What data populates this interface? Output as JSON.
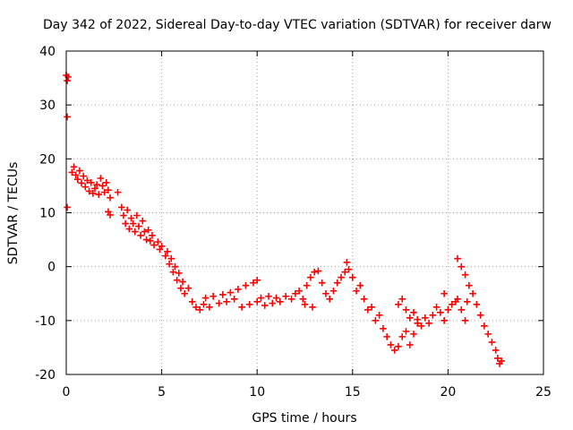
{
  "chart_data": {
    "type": "scatter",
    "title": "Day 342 of 2022, Sidereal Day-to-day VTEC variation (SDTVAR) for receiver darw",
    "xlabel": "GPS time / hours",
    "ylabel": "SDTVAR / TECUs",
    "xlim": [
      0,
      25
    ],
    "ylim": [
      -20,
      40
    ],
    "xticks": [
      0,
      5,
      10,
      15,
      20,
      25
    ],
    "yticks": [
      -20,
      -10,
      0,
      10,
      20,
      30,
      40
    ],
    "xtick_labels": [
      "0",
      "5",
      "10",
      "15",
      "20",
      "25"
    ],
    "ytick_labels": [
      "-20",
      "-10",
      "0",
      "10",
      "20",
      "30",
      "40"
    ],
    "grid": true,
    "marker": "plus",
    "color": "#ff0000",
    "series": [
      {
        "name": "SDTVAR",
        "points": [
          [
            0.0,
            35.5
          ],
          [
            0.05,
            34.5
          ],
          [
            0.1,
            35.2
          ],
          [
            0.05,
            27.8
          ],
          [
            0.05,
            11.0
          ],
          [
            0.3,
            17.5
          ],
          [
            0.4,
            18.5
          ],
          [
            0.5,
            17.0
          ],
          [
            0.6,
            16.2
          ],
          [
            0.7,
            17.8
          ],
          [
            0.8,
            15.5
          ],
          [
            0.9,
            16.8
          ],
          [
            1.0,
            14.8
          ],
          [
            1.1,
            16.0
          ],
          [
            1.2,
            14.0
          ],
          [
            1.3,
            15.6
          ],
          [
            1.4,
            13.6
          ],
          [
            1.5,
            14.5
          ],
          [
            1.6,
            15.2
          ],
          [
            1.7,
            13.4
          ],
          [
            1.8,
            16.4
          ],
          [
            1.9,
            15.0
          ],
          [
            2.0,
            13.8
          ],
          [
            2.1,
            15.6
          ],
          [
            2.2,
            14.2
          ],
          [
            2.3,
            12.8
          ],
          [
            2.2,
            10.2
          ],
          [
            2.3,
            9.6
          ],
          [
            2.7,
            13.8
          ],
          [
            2.9,
            11.0
          ],
          [
            3.0,
            9.5
          ],
          [
            3.1,
            8.0
          ],
          [
            3.2,
            10.5
          ],
          [
            3.3,
            7.0
          ],
          [
            3.4,
            9.0
          ],
          [
            3.5,
            8.0
          ],
          [
            3.6,
            6.5
          ],
          [
            3.7,
            9.5
          ],
          [
            3.8,
            7.5
          ],
          [
            3.9,
            5.8
          ],
          [
            4.0,
            8.5
          ],
          [
            4.1,
            6.5
          ],
          [
            4.2,
            5.0
          ],
          [
            4.3,
            6.8
          ],
          [
            4.4,
            4.8
          ],
          [
            4.5,
            5.8
          ],
          [
            4.6,
            4.0
          ],
          [
            4.8,
            4.6
          ],
          [
            4.9,
            3.2
          ],
          [
            5.0,
            3.8
          ],
          [
            5.2,
            2.0
          ],
          [
            5.3,
            2.8
          ],
          [
            5.4,
            0.5
          ],
          [
            5.5,
            1.5
          ],
          [
            5.6,
            -1.0
          ],
          [
            5.7,
            0.0
          ],
          [
            5.8,
            -2.5
          ],
          [
            5.9,
            -1.2
          ],
          [
            6.0,
            -4.0
          ],
          [
            6.1,
            -2.8
          ],
          [
            6.2,
            -5.0
          ],
          [
            6.4,
            -4.0
          ],
          [
            6.6,
            -6.5
          ],
          [
            6.8,
            -7.5
          ],
          [
            7.0,
            -8.0
          ],
          [
            7.2,
            -7.0
          ],
          [
            7.3,
            -5.8
          ],
          [
            7.5,
            -7.5
          ],
          [
            7.7,
            -5.5
          ],
          [
            8.0,
            -6.8
          ],
          [
            8.2,
            -5.2
          ],
          [
            8.4,
            -6.5
          ],
          [
            8.6,
            -4.8
          ],
          [
            8.8,
            -6.0
          ],
          [
            9.0,
            -4.2
          ],
          [
            9.2,
            -7.5
          ],
          [
            9.4,
            -3.5
          ],
          [
            9.6,
            -7.0
          ],
          [
            9.8,
            -3.0
          ],
          [
            10.0,
            -6.5
          ],
          [
            10.0,
            -2.5
          ],
          [
            10.2,
            -5.8
          ],
          [
            10.4,
            -7.2
          ],
          [
            10.6,
            -5.5
          ],
          [
            10.8,
            -6.8
          ],
          [
            11.0,
            -5.8
          ],
          [
            11.2,
            -6.5
          ],
          [
            11.5,
            -5.5
          ],
          [
            11.8,
            -6.0
          ],
          [
            12.0,
            -5.0
          ],
          [
            12.2,
            -4.5
          ],
          [
            12.4,
            -6.0
          ],
          [
            12.6,
            -3.5
          ],
          [
            12.8,
            -2.0
          ],
          [
            12.5,
            -7.0
          ],
          [
            12.9,
            -7.5
          ],
          [
            13.0,
            -1.0
          ],
          [
            13.2,
            -0.8
          ],
          [
            13.4,
            -3.0
          ],
          [
            13.6,
            -5.0
          ],
          [
            13.8,
            -6.0
          ],
          [
            14.0,
            -4.5
          ],
          [
            14.2,
            -3.0
          ],
          [
            14.4,
            -2.0
          ],
          [
            14.6,
            -1.0
          ],
          [
            14.7,
            0.8
          ],
          [
            14.8,
            -0.5
          ],
          [
            15.0,
            -2.0
          ],
          [
            15.2,
            -4.5
          ],
          [
            15.4,
            -3.5
          ],
          [
            15.6,
            -6.0
          ],
          [
            15.8,
            -8.0
          ],
          [
            16.0,
            -7.5
          ],
          [
            16.2,
            -10.0
          ],
          [
            16.4,
            -9.0
          ],
          [
            16.6,
            -11.5
          ],
          [
            16.8,
            -13.0
          ],
          [
            17.0,
            -14.5
          ],
          [
            17.2,
            -15.5
          ],
          [
            17.4,
            -14.8
          ],
          [
            17.6,
            -13.0
          ],
          [
            17.8,
            -12.0
          ],
          [
            18.0,
            -14.5
          ],
          [
            18.2,
            -12.5
          ],
          [
            18.4,
            -10.5
          ],
          [
            17.4,
            -7.0
          ],
          [
            17.6,
            -6.0
          ],
          [
            17.8,
            -8.0
          ],
          [
            18.0,
            -9.5
          ],
          [
            18.2,
            -8.5
          ],
          [
            18.4,
            -9.8
          ],
          [
            18.6,
            -11.0
          ],
          [
            18.8,
            -9.5
          ],
          [
            19.0,
            -10.5
          ],
          [
            19.2,
            -9.0
          ],
          [
            19.4,
            -7.5
          ],
          [
            19.6,
            -8.5
          ],
          [
            19.8,
            -10.0
          ],
          [
            20.0,
            -8.0
          ],
          [
            20.2,
            -7.0
          ],
          [
            20.4,
            -6.5
          ],
          [
            20.5,
            -6.0
          ],
          [
            20.7,
            -8.0
          ],
          [
            20.9,
            -10.0
          ],
          [
            21.0,
            -6.5
          ],
          [
            19.8,
            -5.0
          ],
          [
            20.5,
            1.5
          ],
          [
            20.7,
            0.0
          ],
          [
            20.9,
            -1.5
          ],
          [
            21.1,
            -3.5
          ],
          [
            21.3,
            -5.0
          ],
          [
            21.5,
            -7.0
          ],
          [
            21.7,
            -9.0
          ],
          [
            21.9,
            -11.0
          ],
          [
            22.1,
            -12.5
          ],
          [
            22.3,
            -14.0
          ],
          [
            22.5,
            -15.5
          ],
          [
            22.6,
            -17.0
          ],
          [
            22.7,
            -18.0
          ],
          [
            22.8,
            -17.5
          ]
        ]
      }
    ]
  }
}
